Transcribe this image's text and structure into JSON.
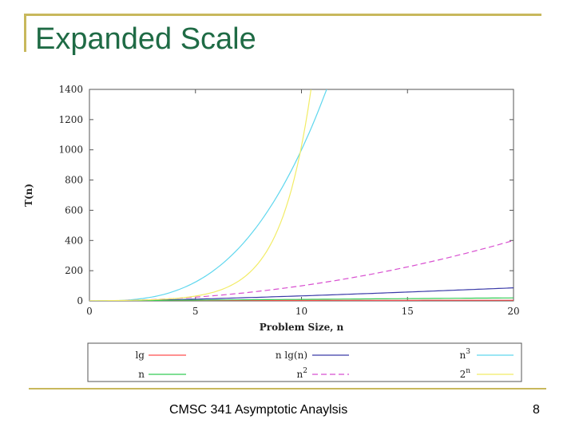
{
  "slide": {
    "title": "Expanded Scale",
    "footer": "CMSC 341 Asymptotic Anaylsis",
    "page_number": "8"
  },
  "chart_data": {
    "type": "line",
    "xlabel": "Problem Size, n",
    "ylabel": "T(n)",
    "xlim": [
      0,
      20
    ],
    "ylim": [
      0,
      1400
    ],
    "x_ticks": [
      0,
      5,
      10,
      15,
      20
    ],
    "y_ticks": [
      0,
      200,
      400,
      600,
      800,
      1000,
      1200,
      1400
    ],
    "grid": false,
    "legend_position": "bottom",
    "series": [
      {
        "name": "lg(n)",
        "base": "lg",
        "sup": "",
        "color": "#ff4d4d",
        "dash": "",
        "x": [
          1,
          5,
          10,
          15,
          20
        ],
        "y": [
          0,
          2.32,
          3.32,
          3.91,
          4.32
        ]
      },
      {
        "name": "n lg(n)",
        "base": "n lg(n)",
        "sup": "",
        "color": "#3a3aa8",
        "dash": "",
        "x": [
          1,
          5,
          10,
          15,
          20
        ],
        "y": [
          0,
          11.6,
          33.2,
          58.6,
          86.4
        ]
      },
      {
        "name": "n3",
        "base": "n",
        "sup": "3",
        "color": "#5fd7ee",
        "dash": "",
        "x": [
          0,
          2,
          4,
          6,
          8,
          10,
          11.2
        ],
        "y": [
          0,
          8,
          64,
          216,
          512,
          1000,
          1405
        ]
      },
      {
        "name": "n",
        "base": "n",
        "sup": "",
        "color": "#33cc55",
        "dash": "",
        "x": [
          0,
          5,
          10,
          15,
          20
        ],
        "y": [
          0,
          5,
          10,
          15,
          20
        ]
      },
      {
        "name": "n2",
        "base": "n",
        "sup": "2",
        "color": "#d84fd0",
        "dash": "7 4",
        "x": [
          0,
          5,
          10,
          15,
          20
        ],
        "y": [
          0,
          25,
          100,
          225,
          400
        ]
      },
      {
        "name": "2n",
        "base": "2",
        "sup": "n",
        "color": "#f2ec66",
        "dash": "",
        "x": [
          0,
          2,
          4,
          6,
          7,
          8,
          9,
          9.5,
          10,
          10.45
        ],
        "y": [
          1,
          4,
          16,
          64,
          128,
          256,
          512,
          724,
          1024,
          1400
        ]
      }
    ]
  }
}
